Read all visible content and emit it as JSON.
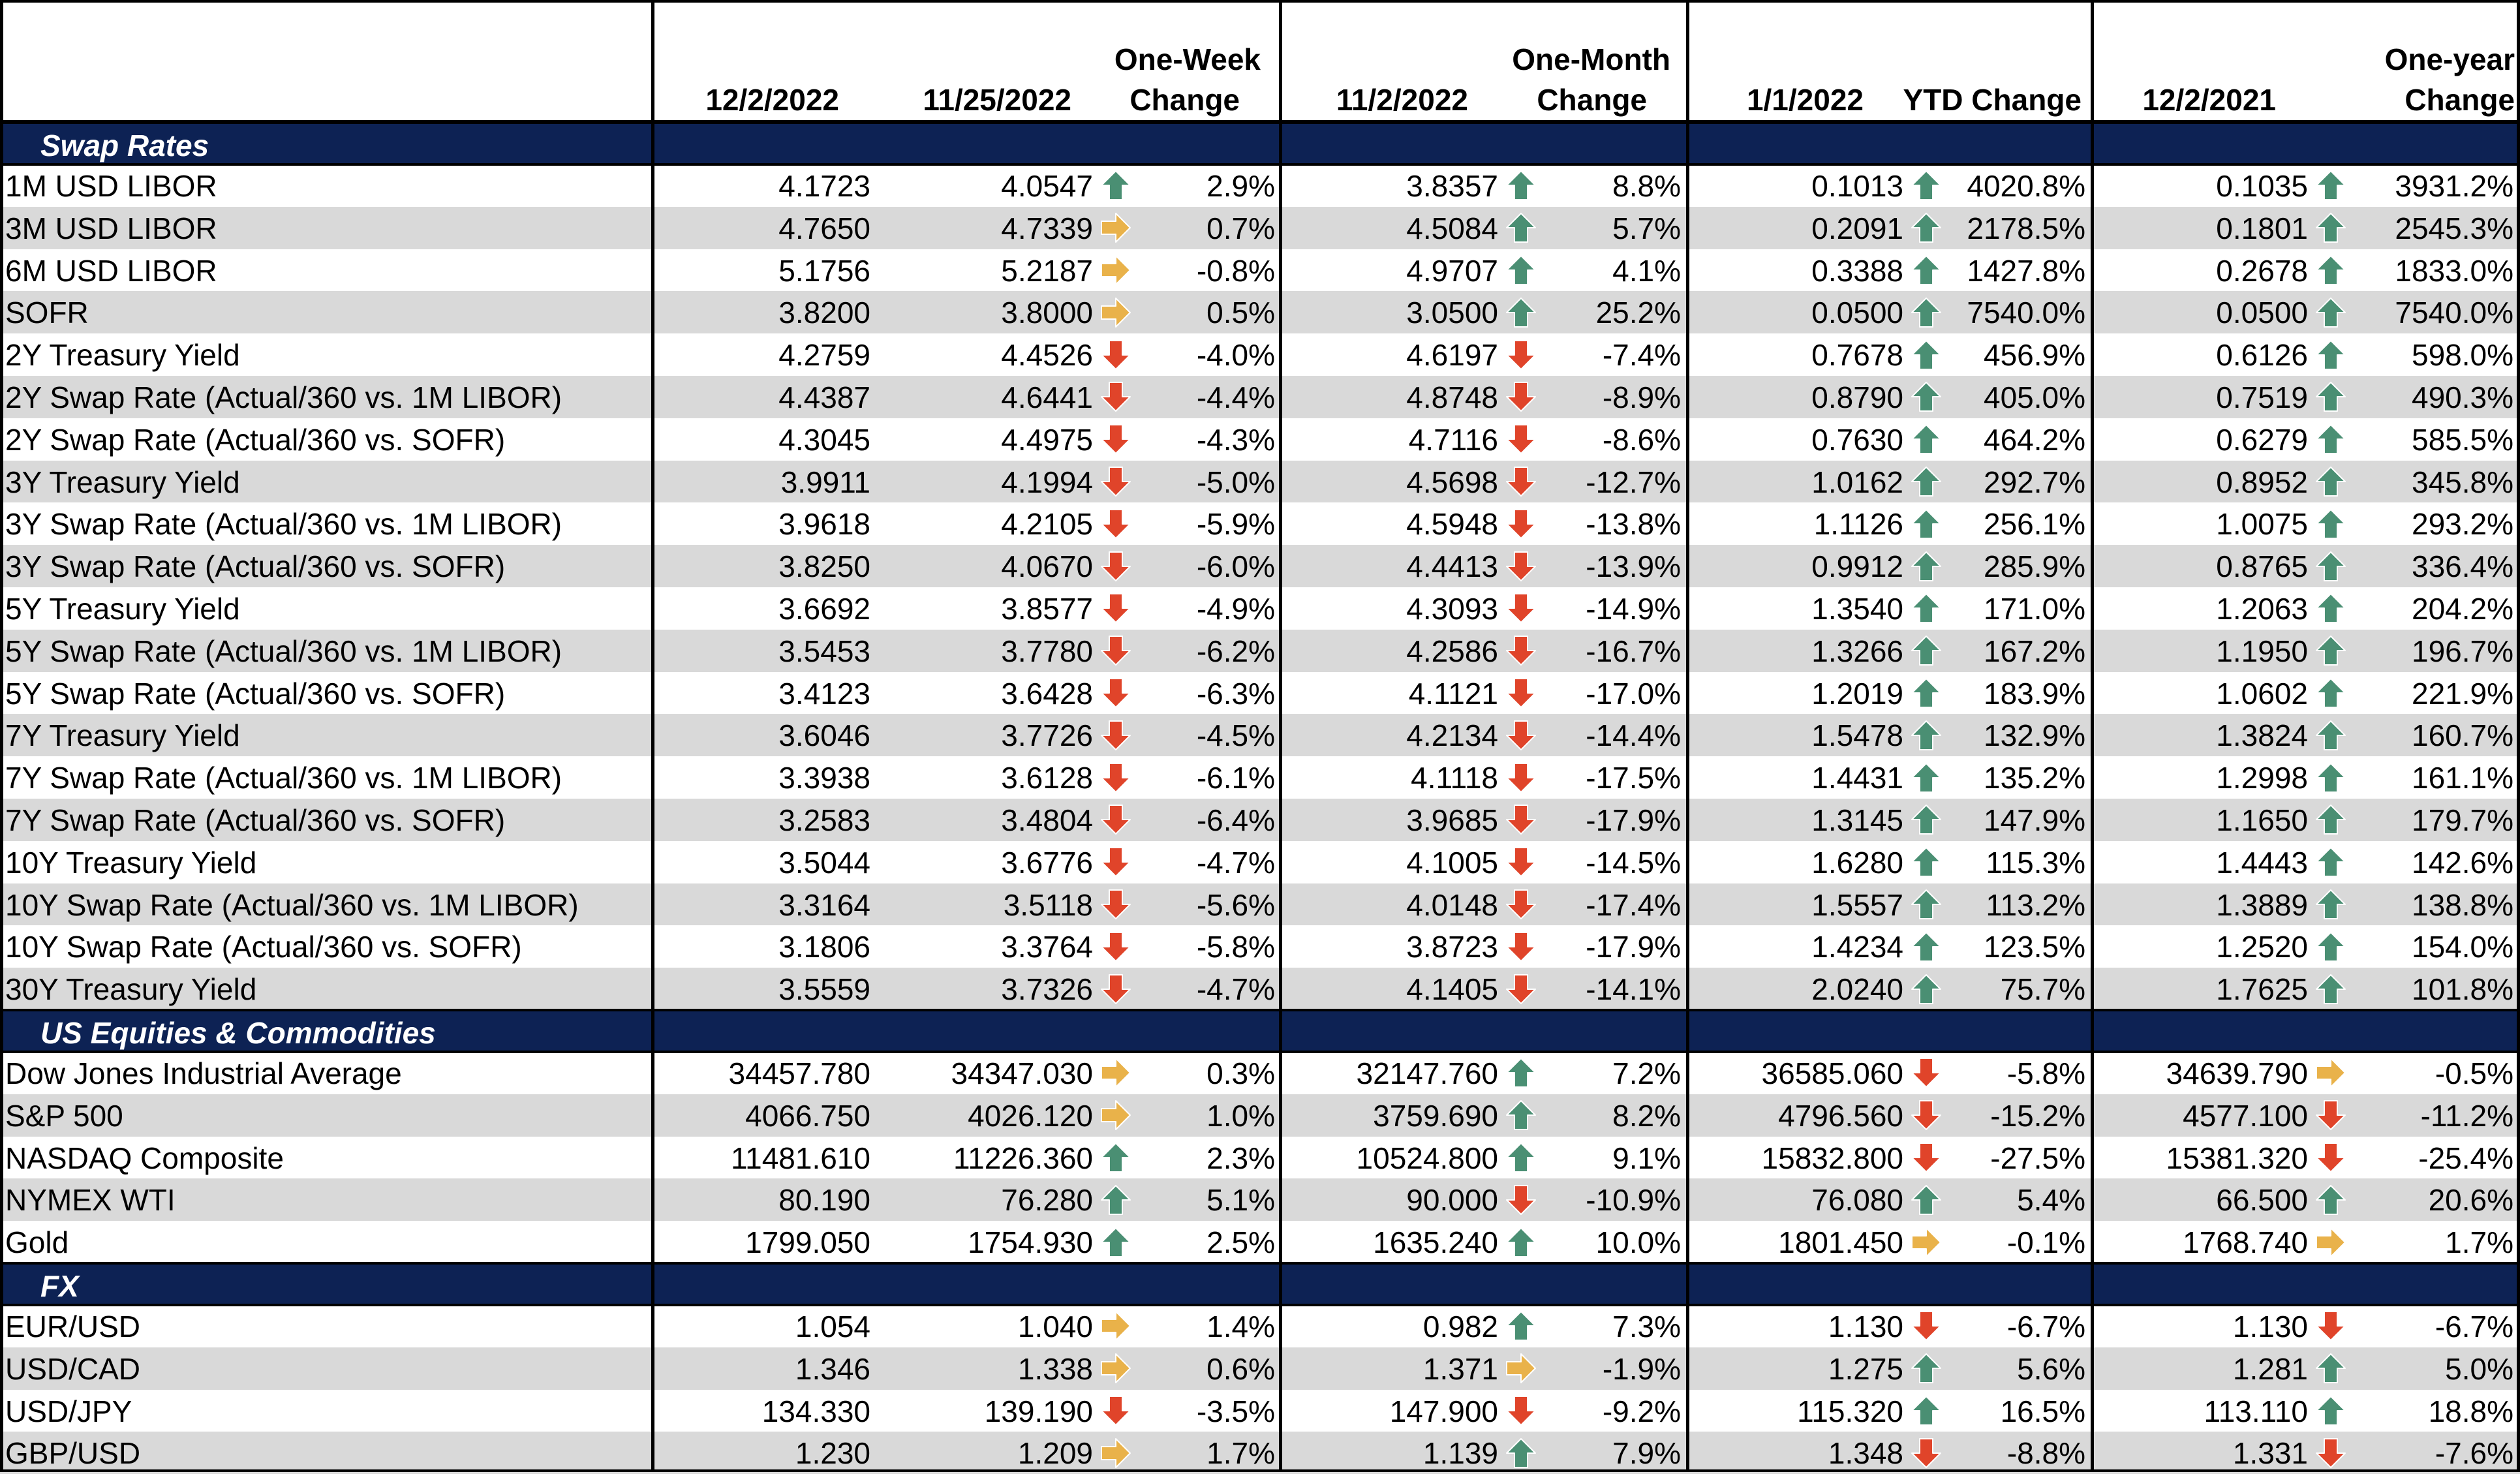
{
  "header": {
    "col_12_2_2022": "12/2/2022",
    "col_11_25_2022": "11/25/2022",
    "col_week_change_1": "One-Week",
    "col_week_change_2": "Change",
    "col_11_2_2022": "11/2/2022",
    "col_month_change_1": "One-Month",
    "col_month_change_2": "Change",
    "col_1_1_2022": "1/1/2022",
    "col_ytd_change": "YTD Change",
    "col_12_2_2021": "12/2/2021",
    "col_year_change_1": "One-year",
    "col_year_change_2": "Change"
  },
  "colors": {
    "section_bg": "#0d2254",
    "shade": "#d9d9d9",
    "up": "#4a8f73",
    "down": "#e0442a",
    "flat": "#e9b24a"
  },
  "sections": [
    {
      "title": "Swap Rates",
      "rows": [
        {
          "name": "1M USD LIBOR",
          "v1": "4.1723",
          "v2": "4.0547",
          "a2": "up",
          "c2": "2.9%",
          "v3": "3.8357",
          "a3": "up",
          "c3": "8.8%",
          "v4": "0.1013",
          "a4": "up",
          "c4": "4020.8%",
          "v5": "0.1035",
          "a5": "up",
          "c5": "3931.2%"
        },
        {
          "name": "3M USD LIBOR",
          "v1": "4.7650",
          "v2": "4.7339",
          "a2": "flat",
          "c2": "0.7%",
          "v3": "4.5084",
          "a3": "up",
          "c3": "5.7%",
          "v4": "0.2091",
          "a4": "up",
          "c4": "2178.5%",
          "v5": "0.1801",
          "a5": "up",
          "c5": "2545.3%"
        },
        {
          "name": "6M USD LIBOR",
          "v1": "5.1756",
          "v2": "5.2187",
          "a2": "flat",
          "c2": "-0.8%",
          "v3": "4.9707",
          "a3": "up",
          "c3": "4.1%",
          "v4": "0.3388",
          "a4": "up",
          "c4": "1427.8%",
          "v5": "0.2678",
          "a5": "up",
          "c5": "1833.0%"
        },
        {
          "name": "SOFR",
          "v1": "3.8200",
          "v2": "3.8000",
          "a2": "flat",
          "c2": "0.5%",
          "v3": "3.0500",
          "a3": "up",
          "c3": "25.2%",
          "v4": "0.0500",
          "a4": "up",
          "c4": "7540.0%",
          "v5": "0.0500",
          "a5": "up",
          "c5": "7540.0%"
        },
        {
          "name": "2Y Treasury Yield",
          "v1": "4.2759",
          "v2": "4.4526",
          "a2": "down",
          "c2": "-4.0%",
          "v3": "4.6197",
          "a3": "down",
          "c3": "-7.4%",
          "v4": "0.7678",
          "a4": "up",
          "c4": "456.9%",
          "v5": "0.6126",
          "a5": "up",
          "c5": "598.0%"
        },
        {
          "name": "2Y Swap Rate (Actual/360 vs. 1M LIBOR)",
          "v1": "4.4387",
          "v2": "4.6441",
          "a2": "down",
          "c2": "-4.4%",
          "v3": "4.8748",
          "a3": "down",
          "c3": "-8.9%",
          "v4": "0.8790",
          "a4": "up",
          "c4": "405.0%",
          "v5": "0.7519",
          "a5": "up",
          "c5": "490.3%"
        },
        {
          "name": "2Y Swap Rate (Actual/360 vs. SOFR)",
          "v1": "4.3045",
          "v2": "4.4975",
          "a2": "down",
          "c2": "-4.3%",
          "v3": "4.7116",
          "a3": "down",
          "c3": "-8.6%",
          "v4": "0.7630",
          "a4": "up",
          "c4": "464.2%",
          "v5": "0.6279",
          "a5": "up",
          "c5": "585.5%"
        },
        {
          "name": "3Y Treasury Yield",
          "v1": "3.9911",
          "v2": "4.1994",
          "a2": "down",
          "c2": "-5.0%",
          "v3": "4.5698",
          "a3": "down",
          "c3": "-12.7%",
          "v4": "1.0162",
          "a4": "up",
          "c4": "292.7%",
          "v5": "0.8952",
          "a5": "up",
          "c5": "345.8%"
        },
        {
          "name": "3Y Swap Rate (Actual/360 vs. 1M LIBOR)",
          "v1": "3.9618",
          "v2": "4.2105",
          "a2": "down",
          "c2": "-5.9%",
          "v3": "4.5948",
          "a3": "down",
          "c3": "-13.8%",
          "v4": "1.1126",
          "a4": "up",
          "c4": "256.1%",
          "v5": "1.0075",
          "a5": "up",
          "c5": "293.2%"
        },
        {
          "name": "3Y Swap Rate (Actual/360 vs. SOFR)",
          "v1": "3.8250",
          "v2": "4.0670",
          "a2": "down",
          "c2": "-6.0%",
          "v3": "4.4413",
          "a3": "down",
          "c3": "-13.9%",
          "v4": "0.9912",
          "a4": "up",
          "c4": "285.9%",
          "v5": "0.8765",
          "a5": "up",
          "c5": "336.4%"
        },
        {
          "name": "5Y Treasury Yield",
          "v1": "3.6692",
          "v2": "3.8577",
          "a2": "down",
          "c2": "-4.9%",
          "v3": "4.3093",
          "a3": "down",
          "c3": "-14.9%",
          "v4": "1.3540",
          "a4": "up",
          "c4": "171.0%",
          "v5": "1.2063",
          "a5": "up",
          "c5": "204.2%"
        },
        {
          "name": "5Y Swap Rate (Actual/360 vs. 1M LIBOR)",
          "v1": "3.5453",
          "v2": "3.7780",
          "a2": "down",
          "c2": "-6.2%",
          "v3": "4.2586",
          "a3": "down",
          "c3": "-16.7%",
          "v4": "1.3266",
          "a4": "up",
          "c4": "167.2%",
          "v5": "1.1950",
          "a5": "up",
          "c5": "196.7%"
        },
        {
          "name": "5Y Swap Rate (Actual/360 vs. SOFR)",
          "v1": "3.4123",
          "v2": "3.6428",
          "a2": "down",
          "c2": "-6.3%",
          "v3": "4.1121",
          "a3": "down",
          "c3": "-17.0%",
          "v4": "1.2019",
          "a4": "up",
          "c4": "183.9%",
          "v5": "1.0602",
          "a5": "up",
          "c5": "221.9%"
        },
        {
          "name": "7Y Treasury Yield",
          "v1": "3.6046",
          "v2": "3.7726",
          "a2": "down",
          "c2": "-4.5%",
          "v3": "4.2134",
          "a3": "down",
          "c3": "-14.4%",
          "v4": "1.5478",
          "a4": "up",
          "c4": "132.9%",
          "v5": "1.3824",
          "a5": "up",
          "c5": "160.7%"
        },
        {
          "name": "7Y Swap Rate (Actual/360 vs. 1M LIBOR)",
          "v1": "3.3938",
          "v2": "3.6128",
          "a2": "down",
          "c2": "-6.1%",
          "v3": "4.1118",
          "a3": "down",
          "c3": "-17.5%",
          "v4": "1.4431",
          "a4": "up",
          "c4": "135.2%",
          "v5": "1.2998",
          "a5": "up",
          "c5": "161.1%"
        },
        {
          "name": "7Y Swap Rate (Actual/360 vs. SOFR)",
          "v1": "3.2583",
          "v2": "3.4804",
          "a2": "down",
          "c2": "-6.4%",
          "v3": "3.9685",
          "a3": "down",
          "c3": "-17.9%",
          "v4": "1.3145",
          "a4": "up",
          "c4": "147.9%",
          "v5": "1.1650",
          "a5": "up",
          "c5": "179.7%"
        },
        {
          "name": "10Y Treasury Yield",
          "v1": "3.5044",
          "v2": "3.6776",
          "a2": "down",
          "c2": "-4.7%",
          "v3": "4.1005",
          "a3": "down",
          "c3": "-14.5%",
          "v4": "1.6280",
          "a4": "up",
          "c4": "115.3%",
          "v5": "1.4443",
          "a5": "up",
          "c5": "142.6%"
        },
        {
          "name": "10Y Swap Rate (Actual/360 vs. 1M LIBOR)",
          "v1": "3.3164",
          "v2": "3.5118",
          "a2": "down",
          "c2": "-5.6%",
          "v3": "4.0148",
          "a3": "down",
          "c3": "-17.4%",
          "v4": "1.5557",
          "a4": "up",
          "c4": "113.2%",
          "v5": "1.3889",
          "a5": "up",
          "c5": "138.8%"
        },
        {
          "name": "10Y Swap Rate (Actual/360 vs. SOFR)",
          "v1": "3.1806",
          "v2": "3.3764",
          "a2": "down",
          "c2": "-5.8%",
          "v3": "3.8723",
          "a3": "down",
          "c3": "-17.9%",
          "v4": "1.4234",
          "a4": "up",
          "c4": "123.5%",
          "v5": "1.2520",
          "a5": "up",
          "c5": "154.0%"
        },
        {
          "name": "30Y Treasury Yield",
          "v1": "3.5559",
          "v2": "3.7326",
          "a2": "down",
          "c2": "-4.7%",
          "v3": "4.1405",
          "a3": "down",
          "c3": "-14.1%",
          "v4": "2.0240",
          "a4": "up",
          "c4": "75.7%",
          "v5": "1.7625",
          "a5": "up",
          "c5": "101.8%"
        }
      ]
    },
    {
      "title": "US Equities & Commodities",
      "rows": [
        {
          "name": "Dow Jones Industrial Average",
          "v1": "34457.780",
          "v2": "34347.030",
          "a2": "flat",
          "c2": "0.3%",
          "v3": "32147.760",
          "a3": "up",
          "c3": "7.2%",
          "v4": "36585.060",
          "a4": "down",
          "c4": "-5.8%",
          "v5": "34639.790",
          "a5": "flat",
          "c5": "-0.5%"
        },
        {
          "name": "S&P 500",
          "v1": "4066.750",
          "v2": "4026.120",
          "a2": "flat",
          "c2": "1.0%",
          "v3": "3759.690",
          "a3": "up",
          "c3": "8.2%",
          "v4": "4796.560",
          "a4": "down",
          "c4": "-15.2%",
          "v5": "4577.100",
          "a5": "down",
          "c5": "-11.2%"
        },
        {
          "name": "NASDAQ Composite",
          "v1": "11481.610",
          "v2": "11226.360",
          "a2": "up",
          "c2": "2.3%",
          "v3": "10524.800",
          "a3": "up",
          "c3": "9.1%",
          "v4": "15832.800",
          "a4": "down",
          "c4": "-27.5%",
          "v5": "15381.320",
          "a5": "down",
          "c5": "-25.4%"
        },
        {
          "name": "NYMEX WTI",
          "v1": "80.190",
          "v2": "76.280",
          "a2": "up",
          "c2": "5.1%",
          "v3": "90.000",
          "a3": "down",
          "c3": "-10.9%",
          "v4": "76.080",
          "a4": "up",
          "c4": "5.4%",
          "v5": "66.500",
          "a5": "up",
          "c5": "20.6%"
        },
        {
          "name": "Gold",
          "v1": "1799.050",
          "v2": "1754.930",
          "a2": "up",
          "c2": "2.5%",
          "v3": "1635.240",
          "a3": "up",
          "c3": "10.0%",
          "v4": "1801.450",
          "a4": "flat",
          "c4": "-0.1%",
          "v5": "1768.740",
          "a5": "flat",
          "c5": "1.7%"
        }
      ]
    },
    {
      "title": "FX",
      "rows": [
        {
          "name": "EUR/USD",
          "v1": "1.054",
          "v2": "1.040",
          "a2": "flat",
          "c2": "1.4%",
          "v3": "0.982",
          "a3": "up",
          "c3": "7.3%",
          "v4": "1.130",
          "a4": "down",
          "c4": "-6.7%",
          "v5": "1.130",
          "a5": "down",
          "c5": "-6.7%"
        },
        {
          "name": "USD/CAD",
          "v1": "1.346",
          "v2": "1.338",
          "a2": "flat",
          "c2": "0.6%",
          "v3": "1.371",
          "a3": "flat",
          "c3": "-1.9%",
          "v4": "1.275",
          "a4": "up",
          "c4": "5.6%",
          "v5": "1.281",
          "a5": "up",
          "c5": "5.0%"
        },
        {
          "name": "USD/JPY",
          "v1": "134.330",
          "v2": "139.190",
          "a2": "down",
          "c2": "-3.5%",
          "v3": "147.900",
          "a3": "down",
          "c3": "-9.2%",
          "v4": "115.320",
          "a4": "up",
          "c4": "16.5%",
          "v5": "113.110",
          "a5": "up",
          "c5": "18.8%"
        },
        {
          "name": "GBP/USD",
          "v1": "1.230",
          "v2": "1.209",
          "a2": "flat",
          "c2": "1.7%",
          "v3": "1.139",
          "a3": "up",
          "c3": "7.9%",
          "v4": "1.348",
          "a4": "down",
          "c4": "-8.8%",
          "v5": "1.331",
          "a5": "down",
          "c5": "-7.6%"
        }
      ]
    }
  ]
}
